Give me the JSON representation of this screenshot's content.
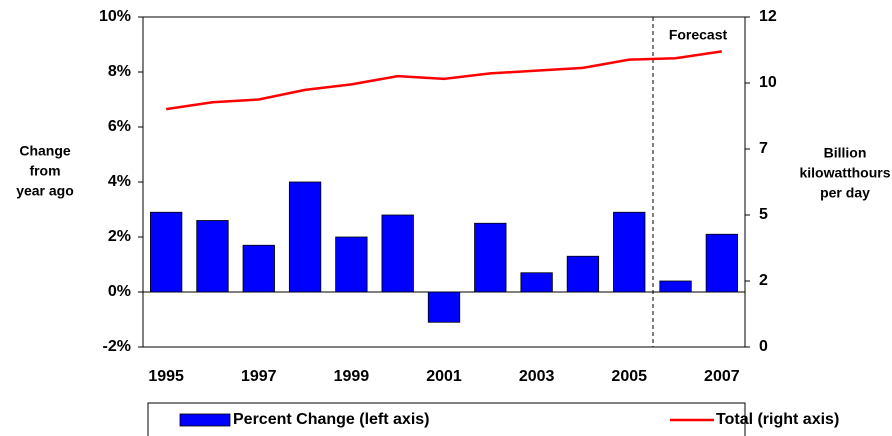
{
  "chart_data": {
    "type": "bar_line",
    "categories": [
      "1995",
      null,
      "1997",
      null,
      "1999",
      null,
      "2001",
      null,
      "2003",
      null,
      "2005",
      null,
      "2007"
    ],
    "series": [
      {
        "name": "Percent Change (left axis)",
        "type": "bar",
        "color": "#0000ff",
        "axis": "y",
        "values": [
          2.9,
          2.6,
          1.7,
          4.0,
          2.0,
          2.8,
          -1.1,
          2.5,
          0.7,
          1.3,
          2.9,
          0.4,
          2.1
        ]
      },
      {
        "name": "Total (right axis)",
        "type": "line",
        "color": "#ff0000",
        "axis": "y2",
        "values": [
          8.65,
          8.9,
          9.0,
          9.35,
          9.55,
          9.85,
          9.75,
          9.95,
          10.05,
          10.15,
          10.45,
          10.5,
          10.75
        ]
      }
    ],
    "ylim": [
      -2,
      10
    ],
    "yticks": [
      {
        "value": -2,
        "label": "-2%"
      },
      {
        "value": 0,
        "label": "0%"
      },
      {
        "value": 2,
        "label": "2%"
      },
      {
        "value": 4,
        "label": "4%"
      },
      {
        "value": 6,
        "label": "6%"
      },
      {
        "value": 8,
        "label": "8%"
      },
      {
        "value": 10,
        "label": "10%"
      }
    ],
    "y2lim": [
      0,
      12
    ],
    "y2ticks": [
      0,
      {
        "value": 2.4,
        "label": "2"
      },
      {
        "value": 4.8,
        "label": "5"
      },
      {
        "value": 7.2,
        "label": "7"
      },
      {
        "value": 9.6,
        "label": "10"
      },
      12
    ],
    "y_label": [
      "Change",
      "from",
      "year ago"
    ],
    "y2_label": [
      "Billion",
      "kilowatthours",
      "per day"
    ],
    "annotation": "Forecast",
    "grid": false,
    "legend": "bottom"
  }
}
